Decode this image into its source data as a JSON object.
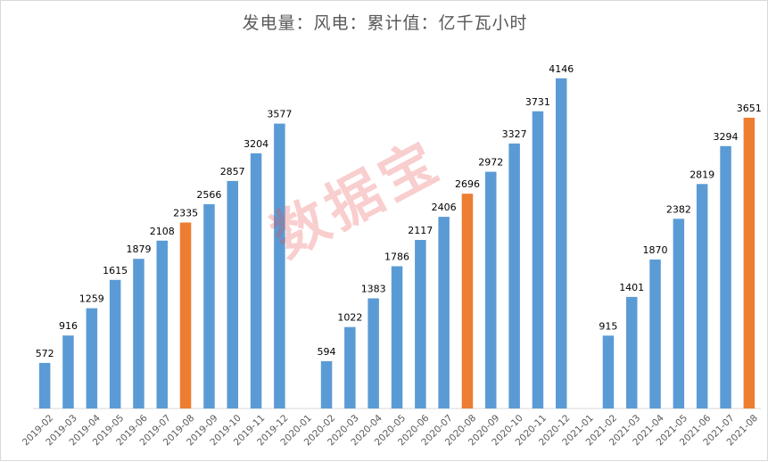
{
  "chart_data": {
    "type": "bar",
    "title": "发电量：风电：累计值：亿千瓦小时",
    "xlabel": "",
    "ylabel": "",
    "ylim": [
      0,
      4500
    ],
    "grid": false,
    "categories": [
      "2019-02",
      "2019-03",
      "2019-04",
      "2019-05",
      "2019-06",
      "2019-07",
      "2019-08",
      "2019-09",
      "2019-10",
      "2019-11",
      "2019-12",
      "2020-01",
      "2020-02",
      "2020-03",
      "2020-04",
      "2020-05",
      "2020-06",
      "2020-07",
      "2020-08",
      "2020-09",
      "2020-10",
      "2020-11",
      "2020-12",
      "2021-01",
      "2021-02",
      "2021-03",
      "2021-04",
      "2021-05",
      "2021-06",
      "2021-07",
      "2021-08"
    ],
    "values": [
      572,
      916,
      1259,
      1615,
      1879,
      2108,
      2335,
      2566,
      2857,
      3204,
      3577,
      null,
      594,
      1022,
      1383,
      1786,
      2117,
      2406,
      2696,
      2972,
      3327,
      3731,
      4146,
      null,
      915,
      1401,
      1870,
      2382,
      2819,
      3294,
      3651
    ],
    "highlighted": [
      "2019-08",
      "2020-08",
      "2021-08"
    ],
    "colors": {
      "bar": "#5b9bd5",
      "highlight": "#ed7d31",
      "axis": "#d9d9d9"
    }
  },
  "watermark": "数据宝"
}
